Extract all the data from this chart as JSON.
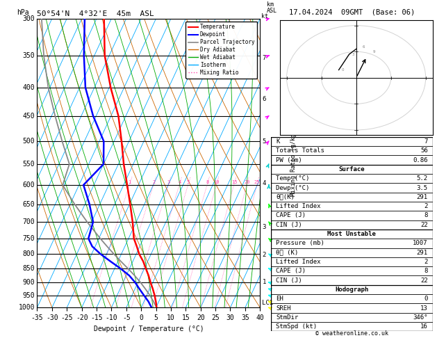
{
  "title_left": "50°54'N  4°32'E  45m  ASL",
  "title_right": "17.04.2024  09GMT  (Base: 06)",
  "xlabel": "Dewpoint / Temperature (°C)",
  "pressure_levels": [
    300,
    350,
    400,
    450,
    500,
    550,
    600,
    650,
    700,
    750,
    800,
    850,
    900,
    950,
    1000
  ],
  "xlim": [
    -35,
    40
  ],
  "temp_profile": {
    "pressure": [
      1000,
      975,
      950,
      925,
      900,
      875,
      850,
      825,
      800,
      775,
      750,
      700,
      650,
      600,
      550,
      500,
      450,
      400,
      350,
      300
    ],
    "temp": [
      5.2,
      4.0,
      2.6,
      1.0,
      -0.8,
      -2.5,
      -4.5,
      -6.5,
      -9.0,
      -11.0,
      -13.2,
      -16.2,
      -19.8,
      -23.8,
      -28.2,
      -32.5,
      -37.5,
      -44.5,
      -51.5,
      -57.5
    ]
  },
  "dewp_profile": {
    "pressure": [
      1000,
      975,
      950,
      925,
      900,
      875,
      850,
      825,
      800,
      775,
      750,
      700,
      650,
      600,
      550,
      500,
      450,
      400,
      350,
      300
    ],
    "dewp": [
      3.5,
      1.5,
      -1.0,
      -3.5,
      -6.0,
      -9.0,
      -13.0,
      -17.5,
      -22.0,
      -26.0,
      -28.5,
      -29.5,
      -33.5,
      -38.5,
      -35.0,
      -38.5,
      -46.0,
      -53.0,
      -58.5,
      -64.0
    ]
  },
  "parcel_profile": {
    "pressure": [
      1000,
      975,
      950,
      925,
      900,
      875,
      850,
      825,
      800,
      775,
      750,
      700,
      650,
      600,
      550,
      500,
      450,
      400,
      350,
      300
    ],
    "temp": [
      5.2,
      3.2,
      1.0,
      -1.5,
      -4.2,
      -7.2,
      -10.5,
      -14.0,
      -17.5,
      -21.0,
      -24.5,
      -31.5,
      -38.5,
      -45.5,
      -46.5,
      -52.5,
      -58.8,
      -65.5,
      -72.0,
      -78.5
    ]
  },
  "info_panel": {
    "K": 7,
    "Totals_Totals": 56,
    "PW_cm": 0.86,
    "Surface_Temp": 5.2,
    "Surface_Dewp": 3.5,
    "Surface_theta_e": 291,
    "Surface_Lifted_Index": 2,
    "Surface_CAPE": 8,
    "Surface_CIN": 22,
    "MU_Pressure": 1007,
    "MU_theta_e": 291,
    "MU_Lifted_Index": 2,
    "MU_CAPE": 8,
    "MU_CIN": 22,
    "EH": 0,
    "SREH": 13,
    "StmDir": 346,
    "StmSpd": 16
  },
  "km_asl": {
    "pressures": [
      980,
      898,
      802,
      715,
      596,
      501,
      420,
      354
    ],
    "labels": [
      "LCL",
      "1",
      "2",
      "3",
      "4",
      "5",
      "6",
      "7"
    ]
  },
  "mixing_ratio_values": [
    1,
    2,
    3,
    4,
    5,
    8,
    10,
    15,
    20,
    25
  ],
  "colors": {
    "temperature": "#ff0000",
    "dewpoint": "#0000ff",
    "parcel": "#888888",
    "dry_adiabat": "#cc6600",
    "wet_adiabat": "#00aa00",
    "isotherm": "#00aaff",
    "mixing_ratio": "#ff44aa"
  },
  "wind_barbs": {
    "pressures": [
      1000,
      975,
      950,
      925,
      900,
      850,
      800,
      750,
      700,
      650,
      600,
      550,
      500,
      450,
      400,
      350,
      300
    ],
    "u_kt": [
      -2,
      -3,
      -4,
      -5,
      -6,
      -5,
      -4,
      -3,
      -2,
      -1,
      0,
      1,
      2,
      3,
      4,
      5,
      6
    ],
    "v_kt": [
      5,
      6,
      8,
      10,
      12,
      14,
      15,
      16,
      17,
      18,
      18,
      17,
      16,
      15,
      14,
      13,
      12
    ],
    "colors": [
      "#ffff00",
      "#ffff00",
      "#00ffff",
      "#00ffff",
      "#00ffff",
      "#00ffff",
      "#00ffff",
      "#00ff00",
      "#00ff00",
      "#00ff00",
      "#00cccc",
      "#00cccc",
      "#ff00ff",
      "#ff00ff",
      "#ff00ff",
      "#ff00ff",
      "#ff00ff"
    ]
  }
}
